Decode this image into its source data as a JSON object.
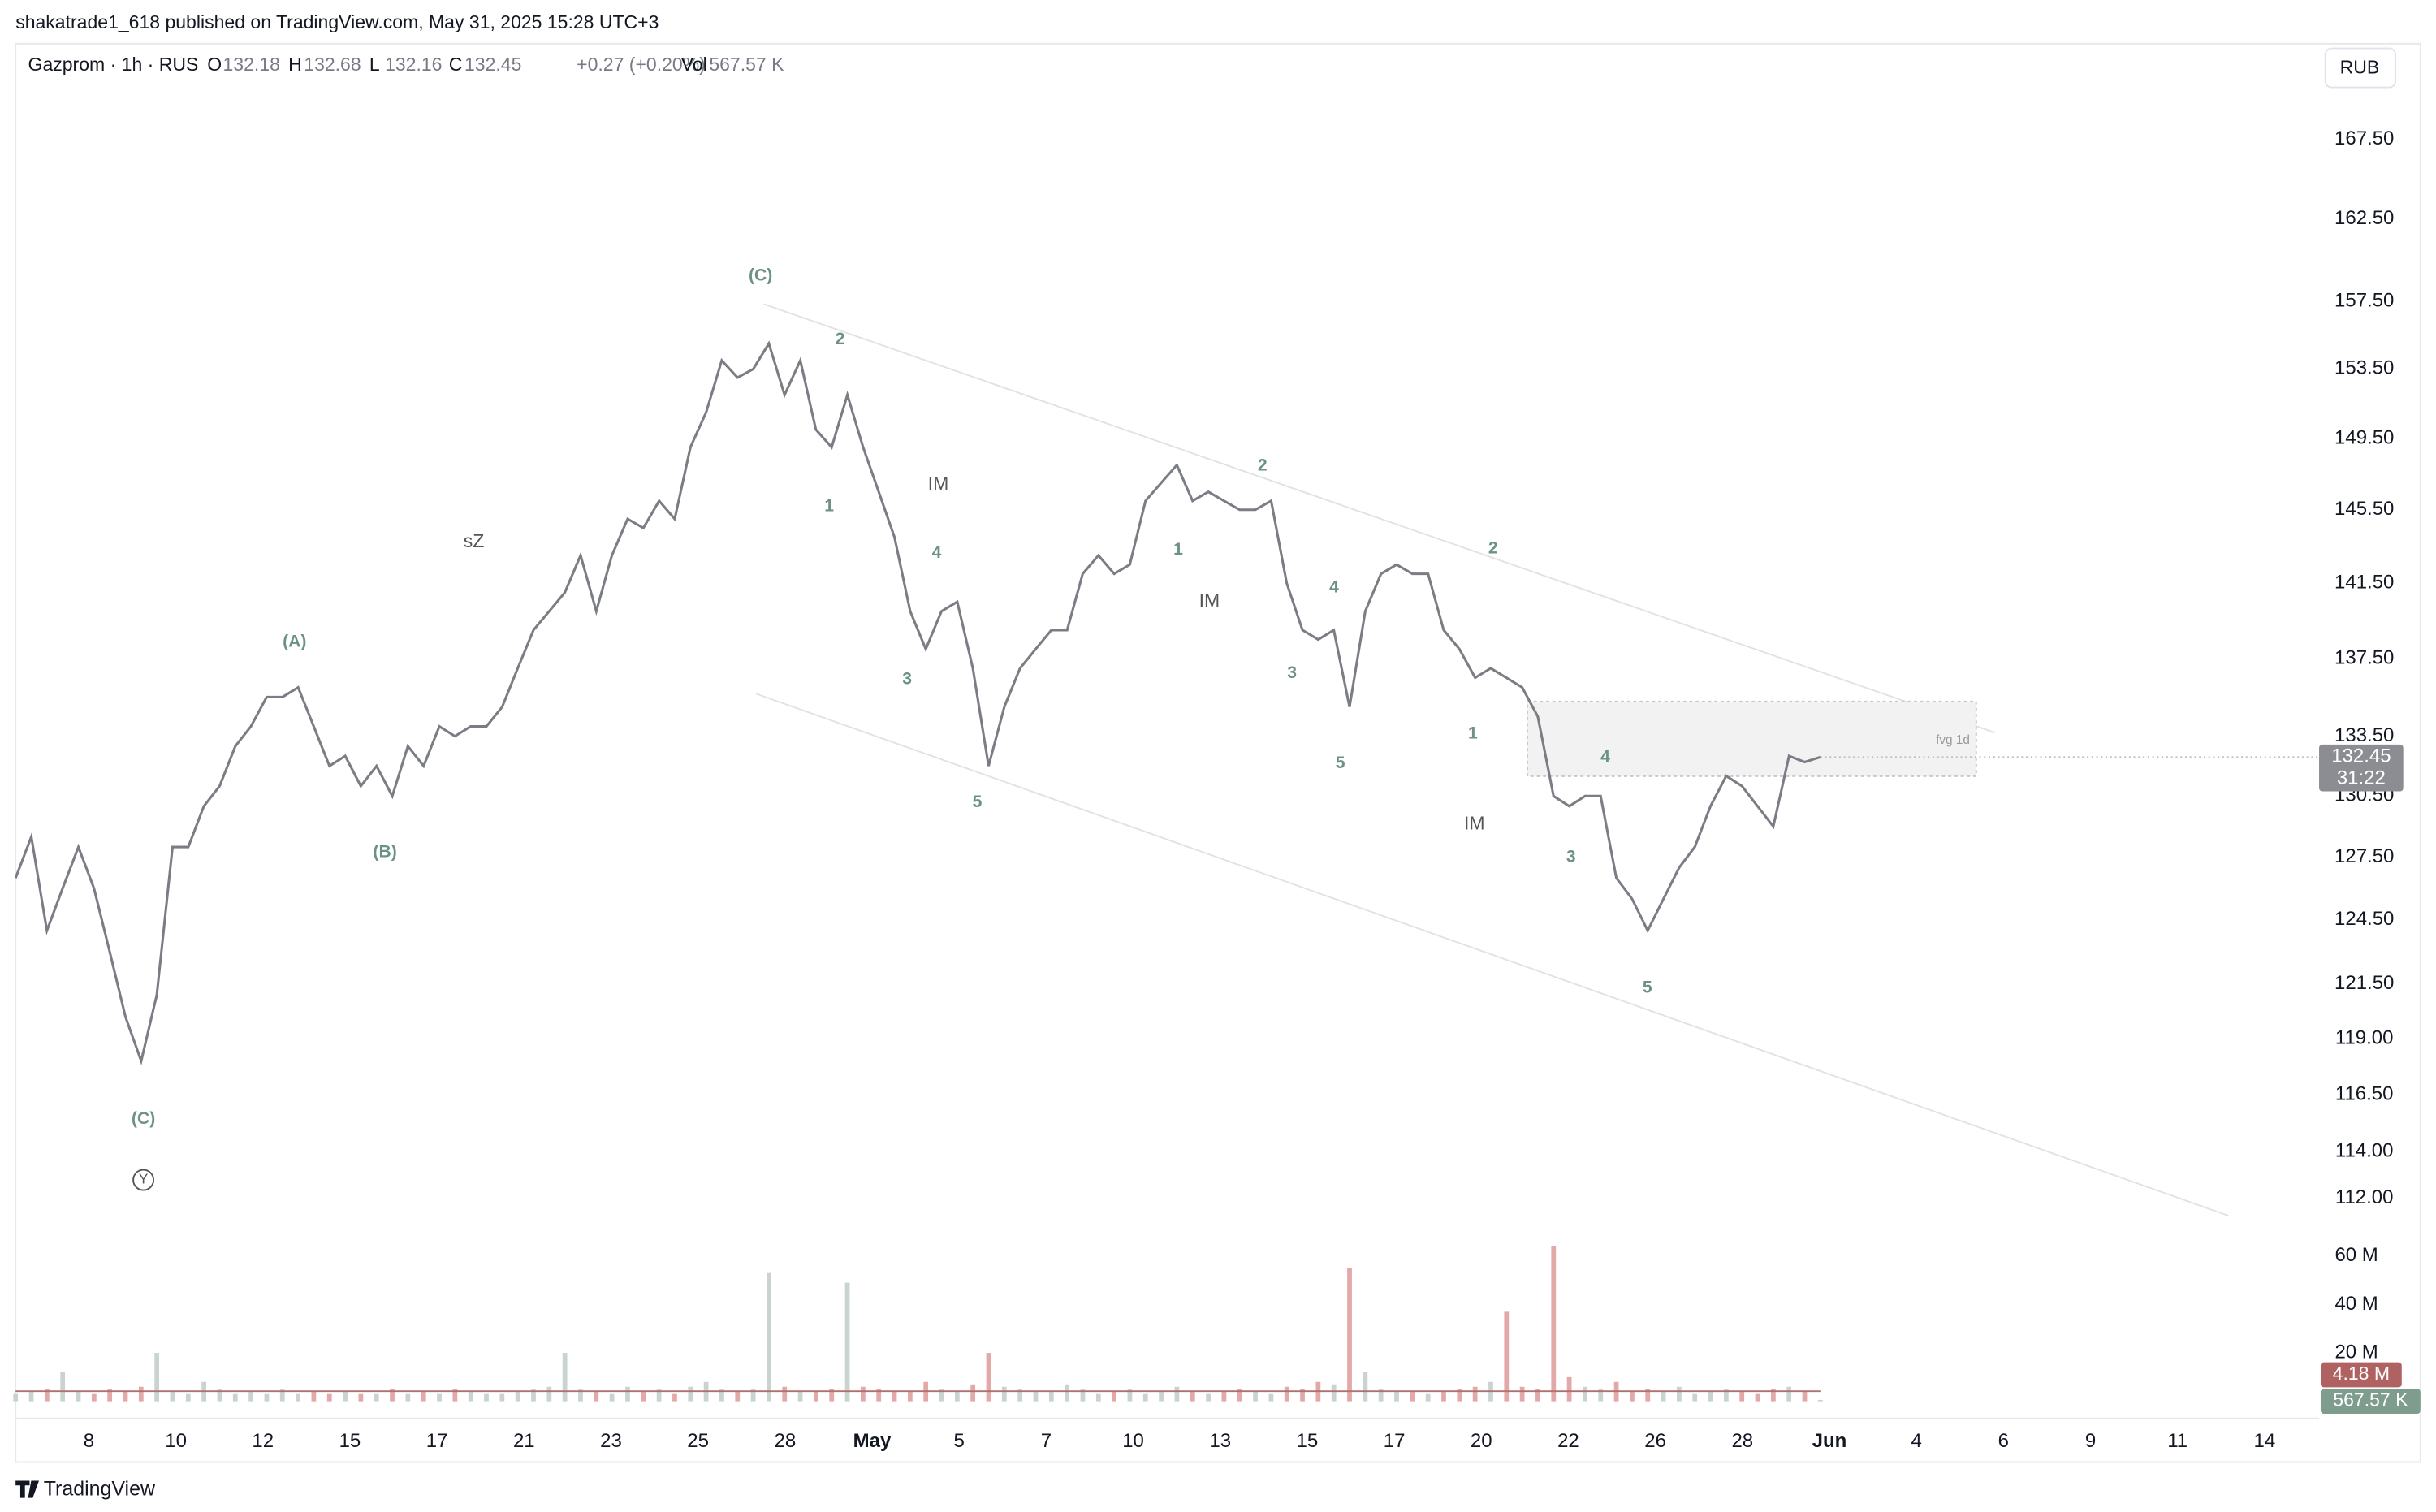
{
  "header": {
    "published": "shakatrade1_618 published on TradingView.com, May 31, 2025 15:28 UTC+3",
    "symbol": "Gazprom · 1h · RUS",
    "ohlc": [
      {
        "label": "O",
        "value": 132.18
      },
      {
        "label": "H",
        "value": 132.68
      },
      {
        "label": "L",
        "value": 132.16
      },
      {
        "label": "C",
        "value": 132.45
      }
    ],
    "change": "+0.27 (+0.20%)",
    "vol_label": "Vol",
    "currency": "RUB",
    "countdown": "31:22",
    "zone_label": "fvg 1d"
  },
  "chart_data": [
    {
      "type": "line",
      "color": "#7b7d84",
      "log_scale": true,
      "grid": false,
      "values": [
        126.5,
        128.5,
        124,
        126,
        128,
        126,
        123,
        120,
        118,
        121,
        128,
        128,
        130,
        131,
        133,
        134,
        135.5,
        135.5,
        136,
        134,
        132,
        132.5,
        131,
        132,
        130.5,
        133,
        132,
        134,
        133.5,
        134,
        134,
        135,
        137,
        139,
        140,
        141,
        143,
        140,
        143,
        145,
        144.5,
        146,
        145,
        149,
        151,
        154,
        153,
        153.5,
        155,
        152,
        154,
        150,
        149,
        152,
        149,
        146.5,
        144,
        140,
        138,
        140,
        140.5,
        137,
        132,
        135,
        137,
        138,
        139,
        139,
        142,
        143,
        142,
        142.5,
        146,
        147,
        148,
        146,
        146.5,
        146,
        145.5,
        145.5,
        146,
        141.5,
        139,
        138.5,
        139,
        135,
        140,
        142,
        142.5,
        142,
        142,
        139,
        138,
        136.5,
        137,
        136.5,
        136,
        134.5,
        130.5,
        130,
        130.5,
        130.5,
        126.5,
        125.5,
        124,
        125.5,
        127,
        128,
        130,
        131.5,
        131,
        130,
        129,
        132.5,
        132.2,
        132.45
      ],
      "ylim": [
        110.6,
        173.7
      ],
      "yticks": [
        {
          "value": 167.5,
          "label": "167.50"
        },
        {
          "value": 162.5,
          "label": "162.50"
        },
        {
          "value": 157.5,
          "label": "157.50"
        },
        {
          "value": 153.5,
          "label": "153.50"
        },
        {
          "value": 149.5,
          "label": "149.50"
        },
        {
          "value": 145.5,
          "label": "145.50"
        },
        {
          "value": 141.5,
          "label": "141.50"
        },
        {
          "value": 137.5,
          "label": "137.50"
        },
        {
          "value": 133.5,
          "label": "133.50"
        },
        {
          "value": 130.5,
          "label": "130.50"
        },
        {
          "value": 127.5,
          "label": "127.50"
        },
        {
          "value": 124.5,
          "label": "124.50"
        },
        {
          "value": 121.5,
          "label": "121.50"
        },
        {
          "value": 119,
          "label": "119.00"
        },
        {
          "value": 116.5,
          "label": "116.50"
        },
        {
          "value": 114,
          "label": "114.00"
        },
        {
          "value": 112,
          "label": "112.00"
        }
      ]
    },
    {
      "type": "bar",
      "up_color": "#c9d4cf",
      "down_color": "#e3a8a8",
      "values": [
        3,
        4,
        5,
        12,
        4,
        3,
        5,
        4,
        6,
        20,
        4,
        3,
        8,
        5,
        3,
        4,
        3,
        5,
        3,
        4,
        3,
        4,
        3,
        3,
        5,
        3,
        4,
        3,
        5,
        4,
        3,
        3,
        4,
        5,
        6,
        20,
        5,
        4,
        3,
        6,
        4,
        5,
        3,
        6,
        8,
        5,
        4,
        5,
        53,
        6,
        4,
        4,
        5,
        49,
        6,
        5,
        4,
        4,
        8,
        5,
        4,
        7,
        20,
        6,
        5,
        4,
        4,
        7,
        5,
        3,
        4,
        5,
        3,
        4,
        6,
        4,
        3,
        4,
        5,
        4,
        3,
        6,
        5,
        8,
        7,
        55,
        12,
        5,
        4,
        4,
        3,
        4,
        5,
        6,
        8,
        37,
        6,
        5,
        64,
        10,
        6,
        5,
        8,
        4,
        5,
        4,
        6,
        3,
        4,
        5,
        4,
        3,
        5,
        6,
        4,
        0.57
      ],
      "ylim": [
        0,
        67
      ],
      "yticks": [
        {
          "value": 20,
          "label": "20 M"
        },
        {
          "value": 40,
          "label": "40 M"
        },
        {
          "value": 60,
          "label": "60 M"
        }
      ],
      "ma_last": {
        "value": 4.18,
        "label": "4.18 M"
      },
      "last": {
        "value": 0.56757,
        "label": "567.57 K"
      }
    }
  ],
  "time_axis": [
    "8",
    "10",
    "12",
    "15",
    "17",
    "21",
    "23",
    "25",
    "28",
    "May",
    "5",
    "7",
    "10",
    "13",
    "15",
    "17",
    "20",
    "22",
    "26",
    "28",
    "Jun",
    "4",
    "6",
    "9",
    "11",
    "14"
  ],
  "wave_labels": [
    "(C)",
    "2",
    "1",
    "IM",
    "4",
    "3",
    "5",
    "sZ",
    "(A)",
    "(B)",
    "(C)",
    "Y",
    "1",
    "2",
    "IM",
    "4",
    "3",
    "5",
    "2",
    "1",
    "IM",
    "4",
    "3",
    "5"
  ],
  "footer": {
    "brand": "TradingView"
  }
}
